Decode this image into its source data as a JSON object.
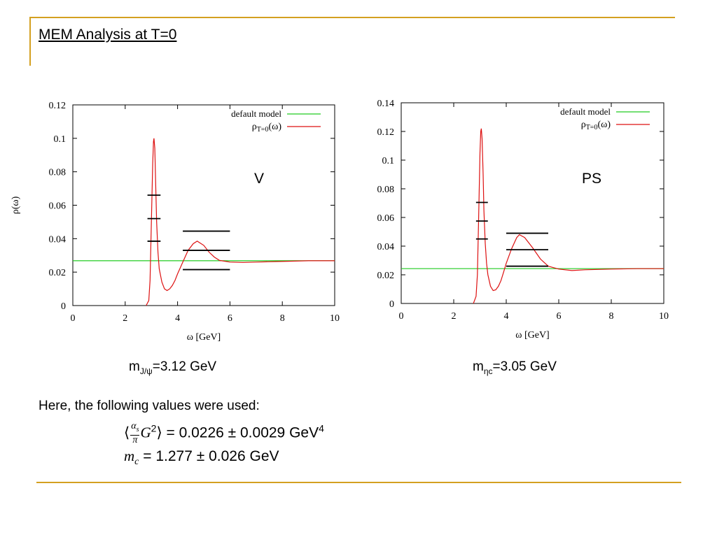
{
  "slide": {
    "title": "MEM Analysis at T=0",
    "accent_color": "#d4a020",
    "note": "Here, the following values were used:",
    "eq1": {
      "frac_num": "α",
      "frac_num_sub": "s",
      "frac_den": "π",
      "rest": "G",
      "rest_sup": "2",
      "value": "= 0.0226 ± 0.0029",
      "unit": "GeV",
      "unit_sup": "4"
    },
    "eq2": {
      "symbol": "m",
      "symbol_sub": "c",
      "value": "= 1.277 ± 0.026",
      "unit": "GeV"
    }
  },
  "chart_data": [
    {
      "type": "line",
      "channel_label": "V",
      "xlabel": "ω [GeV]",
      "ylabel": "ρ(ω)",
      "xlim": [
        0,
        10
      ],
      "ylim": [
        0,
        0.12
      ],
      "xticks": [
        0,
        2,
        4,
        6,
        8,
        10
      ],
      "yticks": [
        0,
        0.02,
        0.04,
        0.06,
        0.08,
        0.1,
        0.12
      ],
      "legend_position": "top-right",
      "series": [
        {
          "name": "default model",
          "color": "#22cc22",
          "x": [
            0,
            10
          ],
          "y": [
            0.0268,
            0.0268
          ]
        },
        {
          "name": "ρT=0(ω)",
          "name_main": "ρ",
          "name_sub": "T=0",
          "name_tail": "(ω)",
          "color": "#dd1111",
          "x": [
            2.8,
            2.9,
            2.95,
            3.0,
            3.05,
            3.08,
            3.1,
            3.13,
            3.16,
            3.2,
            3.25,
            3.3,
            3.4,
            3.5,
            3.6,
            3.7,
            3.8,
            3.9,
            4.0,
            4.2,
            4.4,
            4.6,
            4.75,
            5.0,
            5.2,
            5.4,
            5.6,
            6.0,
            6.5,
            7.0,
            8.0,
            9.0,
            10.0
          ],
          "y": [
            0,
            0.003,
            0.015,
            0.05,
            0.085,
            0.098,
            0.1,
            0.094,
            0.075,
            0.05,
            0.032,
            0.022,
            0.014,
            0.01,
            0.009,
            0.01,
            0.012,
            0.015,
            0.019,
            0.026,
            0.033,
            0.037,
            0.0385,
            0.036,
            0.032,
            0.029,
            0.027,
            0.026,
            0.0258,
            0.026,
            0.0264,
            0.0268,
            0.0268
          ]
        }
      ],
      "error_bars": [
        {
          "x_range": [
            2.85,
            3.35
          ],
          "y": [
            0.0385,
            0.052,
            0.066
          ]
        },
        {
          "x_range": [
            4.2,
            6.0
          ],
          "y": [
            0.0215,
            0.033,
            0.0445
          ]
        }
      ]
    },
    {
      "type": "line",
      "channel_label": "PS",
      "xlabel": "ω [GeV]",
      "ylabel": "",
      "xlim": [
        0,
        10
      ],
      "ylim": [
        0,
        0.14
      ],
      "xticks": [
        0,
        2,
        4,
        6,
        8,
        10
      ],
      "yticks": [
        0,
        0.02,
        0.04,
        0.06,
        0.08,
        0.1,
        0.12,
        0.14
      ],
      "legend_position": "top-right",
      "series": [
        {
          "name": "default model",
          "color": "#22cc22",
          "x": [
            0,
            10
          ],
          "y": [
            0.0243,
            0.0243
          ]
        },
        {
          "name": "ρT=0(ω)",
          "name_main": "ρ",
          "name_sub": "T=0",
          "name_tail": "(ω)",
          "color": "#dd1111",
          "x": [
            2.75,
            2.85,
            2.9,
            2.95,
            3.0,
            3.03,
            3.05,
            3.08,
            3.12,
            3.15,
            3.2,
            3.25,
            3.3,
            3.4,
            3.5,
            3.6,
            3.7,
            3.8,
            3.9,
            4.0,
            4.2,
            4.4,
            4.5,
            4.7,
            5.0,
            5.3,
            5.6,
            6.0,
            6.5,
            7.0,
            8.0,
            9.0,
            10.0
          ],
          "y": [
            0,
            0.005,
            0.02,
            0.06,
            0.105,
            0.12,
            0.122,
            0.115,
            0.09,
            0.065,
            0.042,
            0.028,
            0.02,
            0.012,
            0.009,
            0.0095,
            0.012,
            0.016,
            0.022,
            0.028,
            0.038,
            0.046,
            0.048,
            0.046,
            0.039,
            0.031,
            0.026,
            0.024,
            0.023,
            0.0235,
            0.024,
            0.0243,
            0.0243
          ]
        }
      ],
      "error_bars": [
        {
          "x_range": [
            2.85,
            3.3
          ],
          "y": [
            0.045,
            0.0575,
            0.0705
          ]
        },
        {
          "x_range": [
            4.0,
            5.6
          ],
          "y": [
            0.026,
            0.0375,
            0.049
          ]
        }
      ]
    }
  ],
  "masses": [
    {
      "label": "m",
      "sub": "J/ψ",
      "value": "=3.12 GeV"
    },
    {
      "label": "m",
      "sub": "ηc",
      "value": "=3.05 GeV"
    }
  ]
}
